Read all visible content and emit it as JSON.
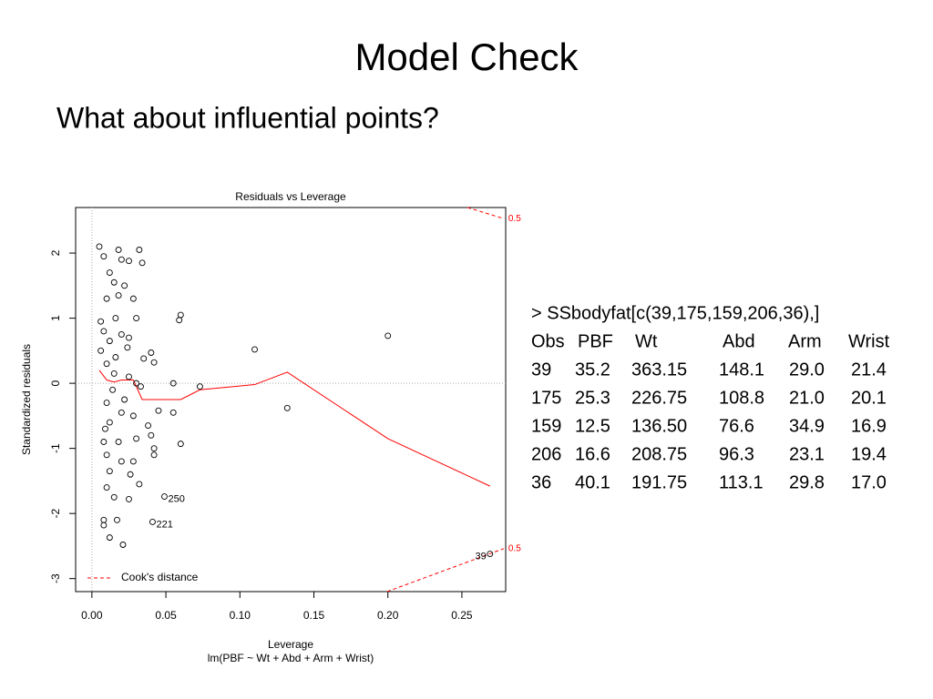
{
  "slide": {
    "title": "Model Check",
    "subtitle": "What about influential points?"
  },
  "console": {
    "command": "> SSbodyfat[c(39,175,159,206,36),]",
    "header": [
      "Obs",
      "PBF",
      "Wt",
      "Abd",
      "Arm",
      "Wrist"
    ],
    "rows": [
      [
        "39",
        "35.2",
        "363.15",
        "148.1",
        "29.0",
        "21.4"
      ],
      [
        "175",
        "25.3",
        "226.75",
        "108.8",
        "21.0",
        "20.1"
      ],
      [
        "159",
        "12.5",
        "136.50",
        "76.6",
        "34.9",
        "16.9"
      ],
      [
        "206",
        "16.6",
        "208.75",
        "96.3",
        "23.1",
        "19.4"
      ],
      [
        "36",
        "40.1",
        "191.75",
        "113.1",
        "29.8",
        "17.0"
      ]
    ]
  },
  "chart_data": {
    "type": "scatter",
    "title": "Residuals vs Leverage",
    "x_label": "Leverage",
    "caption": "lm(PBF ~ Wt + Abd + Arm + Wrist)",
    "y_label": "Standardized residuals",
    "xlim": [
      -0.011,
      0.2796
    ],
    "ylim": [
      -3.2,
      2.7
    ],
    "xticks": [
      {
        "value": 0,
        "label": "0.00"
      },
      {
        "value": 0.05,
        "label": "0.05"
      },
      {
        "value": 0.1,
        "label": "0.10"
      },
      {
        "value": 0.15,
        "label": "0.15"
      },
      {
        "value": 0.2,
        "label": "0.20"
      },
      {
        "value": 0.25,
        "label": "0.25"
      }
    ],
    "yticks": [
      -3,
      -2,
      -1,
      0,
      1,
      2
    ],
    "x": [
      0.005,
      0.008,
      0.018,
      0.032,
      0.02,
      0.025,
      0.034,
      0.012,
      0.015,
      0.022,
      0.01,
      0.018,
      0.028,
      0.006,
      0.016,
      0.03,
      0.06,
      0.059,
      0.008,
      0.02,
      0.012,
      0.025,
      0.04,
      0.035,
      0.042,
      0.11,
      0.2,
      0.01,
      0.015,
      0.025,
      0.03,
      0.055,
      0.073,
      0.045,
      0.055,
      0.132,
      0.01,
      0.02,
      0.012,
      0.028,
      0.038,
      0.04,
      0.008,
      0.018,
      0.03,
      0.042,
      0.042,
      0.06,
      0.01,
      0.02,
      0.028,
      0.012,
      0.026,
      0.032,
      0.01,
      0.015,
      0.025,
      0.049,
      0.008,
      0.017,
      0.008,
      0.041,
      0.012,
      0.021,
      0.269,
      0.014,
      0.006,
      0.022,
      0.016,
      0.033,
      0.024,
      0.009
    ],
    "values": [
      2.1,
      1.95,
      2.05,
      2.05,
      1.9,
      1.88,
      1.85,
      1.7,
      1.55,
      1.5,
      1.3,
      1.35,
      1.3,
      0.95,
      1.0,
      1.0,
      1.05,
      0.97,
      0.8,
      0.75,
      0.65,
      0.7,
      0.47,
      0.38,
      0.32,
      0.52,
      0.73,
      0.3,
      0.15,
      0.1,
      0.0,
      0.0,
      -0.05,
      -0.42,
      -0.45,
      -0.38,
      -0.3,
      -0.45,
      -0.6,
      -0.5,
      -0.65,
      -0.8,
      -0.9,
      -0.9,
      -0.85,
      -1.0,
      -1.1,
      -0.93,
      -1.1,
      -1.2,
      -1.2,
      -1.35,
      -1.4,
      -1.55,
      -1.6,
      -1.75,
      -1.78,
      -1.74,
      -2.1,
      -2.1,
      -2.18,
      -2.13,
      -2.37,
      -2.48,
      -2.62,
      -0.1,
      0.5,
      -0.25,
      0.4,
      -0.05,
      0.55,
      -0.7
    ],
    "point_labels": [
      null,
      null,
      null,
      null,
      null,
      null,
      null,
      null,
      null,
      null,
      null,
      null,
      null,
      null,
      null,
      null,
      null,
      null,
      null,
      null,
      null,
      null,
      null,
      null,
      null,
      null,
      null,
      null,
      null,
      null,
      null,
      null,
      null,
      null,
      null,
      null,
      null,
      null,
      null,
      null,
      null,
      null,
      null,
      null,
      null,
      null,
      null,
      null,
      null,
      null,
      null,
      null,
      null,
      null,
      null,
      null,
      null,
      "250",
      null,
      null,
      null,
      "221",
      null,
      null,
      "39",
      null,
      null,
      null,
      null,
      null,
      null,
      null
    ],
    "smooth": {
      "color": "#ff0000",
      "x": [
        0.005,
        0.01,
        0.015,
        0.02,
        0.028,
        0.034,
        0.045,
        0.06,
        0.073,
        0.11,
        0.132,
        0.2,
        0.269
      ],
      "values": [
        0.2,
        0.05,
        0.02,
        0.05,
        0.05,
        -0.25,
        -0.25,
        -0.25,
        -0.1,
        -0.02,
        0.17,
        -0.85,
        -1.58
      ]
    },
    "cooks_distance": {
      "name": "Cook's distance",
      "color": "#ff0000",
      "level_label": "0.5",
      "curves": [
        {
          "x": [
            0.2537,
            0.2783
          ],
          "values": [
            2.7,
            2.53
          ]
        },
        {
          "x": [
            0.1995,
            0.2783
          ],
          "values": [
            -3.2,
            -2.54
          ]
        }
      ]
    }
  }
}
